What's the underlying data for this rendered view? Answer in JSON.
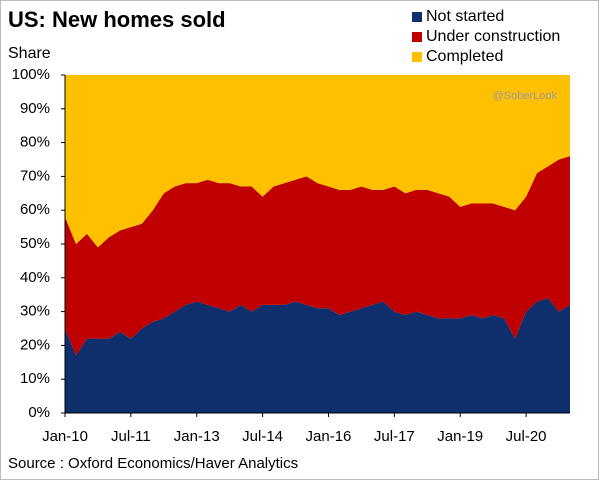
{
  "chart_data": {
    "type": "stacked_area",
    "title": "US: New homes sold",
    "y_label": "Share",
    "source": "Source : Oxford Economics/Haver Analytics",
    "watermark": "@SoberLook",
    "legend": "top-right",
    "categories": [
      "Jan-10",
      null,
      null,
      null,
      null,
      null,
      "Jul-11",
      null,
      null,
      null,
      null,
      null,
      "Jan-13",
      null,
      null,
      null,
      null,
      null,
      "Jul-14",
      null,
      null,
      null,
      null,
      null,
      "Jan-16",
      null,
      null,
      null,
      null,
      null,
      "Jul-17",
      null,
      null,
      null,
      null,
      null,
      "Jan-19",
      null,
      null,
      null,
      null,
      null,
      "Jul-20",
      null,
      null,
      null,
      null
    ],
    "series": [
      {
        "name": "Not started",
        "color": "#0e2f6b",
        "values": [
          25,
          17,
          22,
          22,
          22,
          24,
          22,
          25,
          27,
          28,
          30,
          32,
          33,
          32,
          31,
          30,
          32,
          30,
          32,
          32,
          32,
          33,
          32,
          31,
          31,
          29,
          30,
          31,
          32,
          33,
          30,
          29,
          30,
          29,
          28,
          28,
          28,
          29,
          28,
          29,
          28,
          22,
          30,
          33,
          34,
          30,
          32
        ]
      },
      {
        "name": "Under construction",
        "color": "#c00000",
        "values": [
          33,
          33,
          31,
          27,
          30,
          30,
          33,
          31,
          33,
          37,
          37,
          36,
          35,
          37,
          37,
          38,
          35,
          37,
          32,
          35,
          36,
          36,
          38,
          37,
          36,
          37,
          36,
          36,
          34,
          33,
          37,
          36,
          36,
          37,
          37,
          36,
          33,
          33,
          34,
          33,
          33,
          38,
          34,
          38,
          39,
          45,
          44
        ]
      },
      {
        "name": "Completed",
        "color": "#ffc000",
        "values": [
          42,
          50,
          47,
          51,
          48,
          46,
          45,
          44,
          40,
          35,
          33,
          32,
          32,
          31,
          32,
          32,
          33,
          33,
          36,
          33,
          32,
          31,
          30,
          32,
          33,
          34,
          34,
          33,
          34,
          34,
          33,
          35,
          34,
          34,
          35,
          36,
          39,
          38,
          38,
          38,
          39,
          40,
          36,
          29,
          27,
          25,
          24
        ]
      }
    ],
    "ylim": [
      0,
      100
    ],
    "yticks": [
      {
        "value": 0,
        "label": "0%"
      },
      {
        "value": 10,
        "label": "10%"
      },
      {
        "value": 20,
        "label": "20%"
      },
      {
        "value": 30,
        "label": "30%"
      },
      {
        "value": 40,
        "label": "40%"
      },
      {
        "value": 50,
        "label": "50%"
      },
      {
        "value": 60,
        "label": "60%"
      },
      {
        "value": 70,
        "label": "70%"
      },
      {
        "value": 80,
        "label": "80%"
      },
      {
        "value": 90,
        "label": "90%"
      },
      {
        "value": 100,
        "label": "100%"
      }
    ],
    "grid": false
  }
}
